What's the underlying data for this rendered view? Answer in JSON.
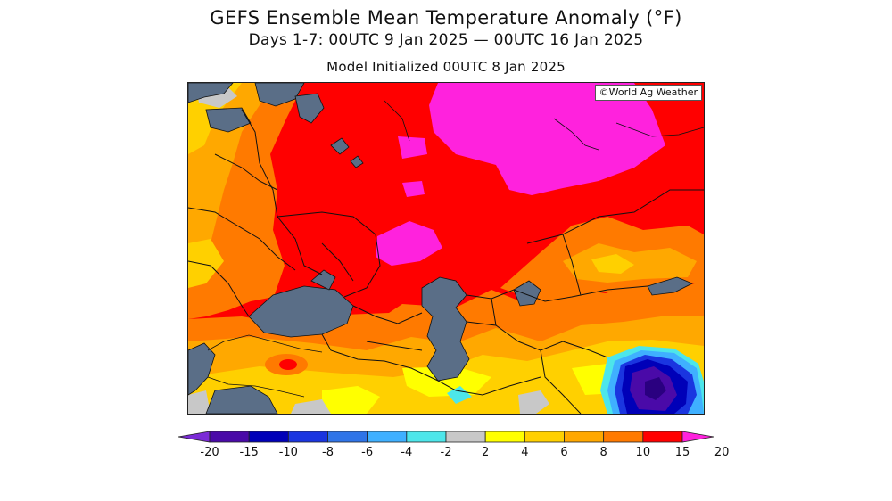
{
  "header": {
    "title": "GEFS Ensemble Mean Temperature Anomaly (°F)",
    "period": "Days 1-7: 00UTC 9 Jan 2025 — 00UTC 16 Jan 2025",
    "init": "Model Initialized 00UTC 8 Jan 2025"
  },
  "map": {
    "watermark": "©World Ag Weather",
    "water_color": "#5a6e87",
    "border_color": "#111111"
  },
  "legend": {
    "labels": [
      "-20",
      "-15",
      "-10",
      "-8",
      "-6",
      "-4",
      "-2",
      "2",
      "4",
      "6",
      "8",
      "10",
      "15",
      "20"
    ],
    "colors": [
      "#7b2bd6",
      "#4a0aa8",
      "#0000b8",
      "#1a35e0",
      "#2f74e8",
      "#3fb0ff",
      "#4de6ea",
      "#c8c8c8",
      "#ffff00",
      "#ffd000",
      "#ffa800",
      "#ff7a00",
      "#ff0000",
      "#ff22dd"
    ]
  }
}
